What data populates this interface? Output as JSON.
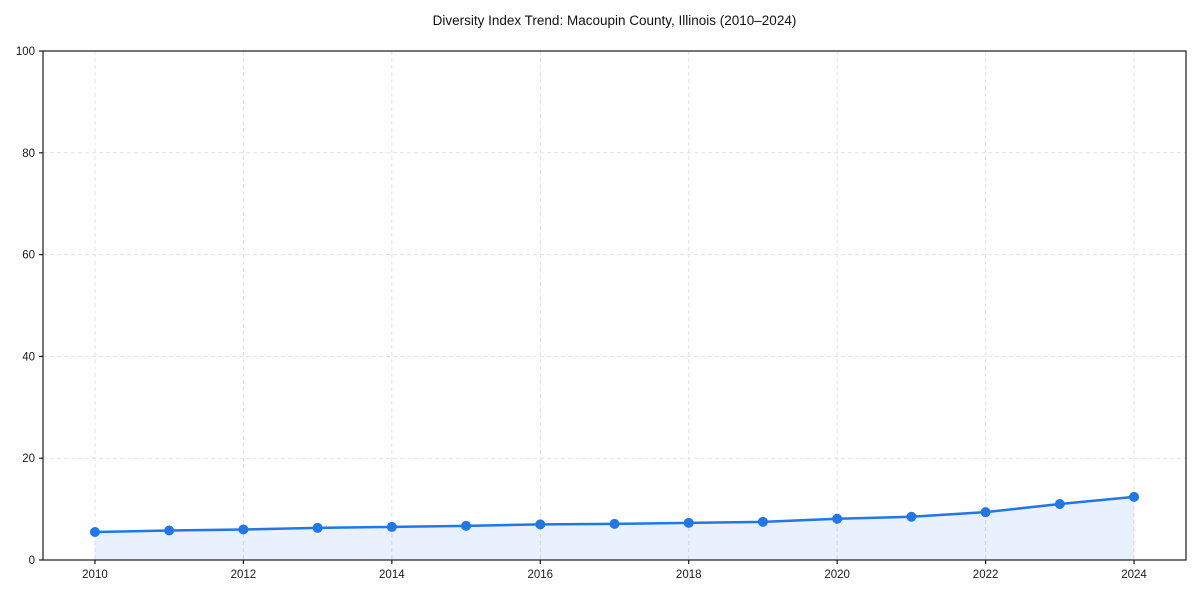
{
  "page": {
    "background": "#ffffff"
  },
  "chart_data": {
    "type": "line",
    "title": "Diversity Index Trend: Macoupin County, Illinois (2010–2024)",
    "x": [
      2010,
      2011,
      2012,
      2013,
      2014,
      2015,
      2016,
      2017,
      2018,
      2019,
      2020,
      2021,
      2022,
      2023,
      2024
    ],
    "series": [
      {
        "name": "Diversity Index",
        "values": [
          5.5,
          5.8,
          6.0,
          6.3,
          6.5,
          6.7,
          7.0,
          7.1,
          7.3,
          7.5,
          8.1,
          8.5,
          9.4,
          11.0,
          12.4
        ]
      }
    ],
    "xlabel": "",
    "ylabel": "",
    "xlim": [
      2009.3,
      2024.7
    ],
    "ylim": [
      0,
      100
    ],
    "xticks": [
      2010,
      2012,
      2014,
      2016,
      2018,
      2020,
      2022,
      2024
    ],
    "yticks": [
      0,
      20,
      40,
      60,
      80,
      100
    ],
    "grid": true,
    "grid_style": "dashed",
    "legend": "none",
    "marker": "circle",
    "area_fill": true,
    "colors": {
      "line": "#2176e8",
      "marker": "#2176e8",
      "fill": "#2176e8",
      "fill_opacity": 0.1,
      "grid": "#e2e2e2",
      "spine": "#1a1a1a",
      "text": "#1a1a1a",
      "title": "#111111"
    }
  }
}
